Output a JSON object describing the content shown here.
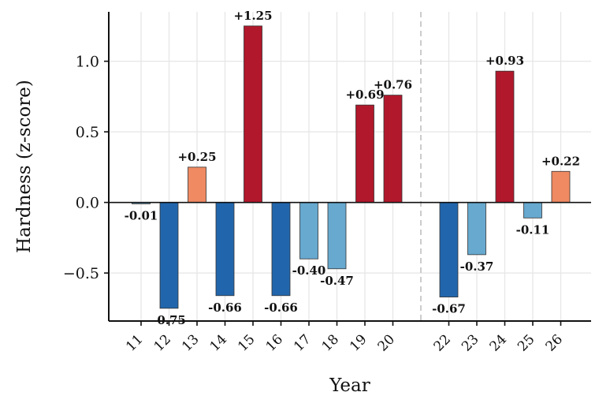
{
  "chart_data": {
    "type": "bar",
    "title": "",
    "xlabel": "Year",
    "ylabel": "Hardness (z-score)",
    "ylim": [
      -0.84,
      1.35
    ],
    "yticks": [
      -0.5,
      0.0,
      0.5,
      1.0
    ],
    "ytick_labels": [
      "−0.5",
      "0.0",
      "0.5",
      "1.0"
    ],
    "categories": [
      "11",
      "12",
      "13",
      "14",
      "15",
      "16",
      "17",
      "18",
      "19",
      "20",
      "22",
      "23",
      "24",
      "25",
      "26"
    ],
    "values": [
      -0.01,
      -0.75,
      0.25,
      -0.66,
      1.25,
      -0.66,
      -0.4,
      -0.47,
      0.69,
      0.76,
      -0.67,
      -0.37,
      0.93,
      -0.11,
      0.22
    ],
    "data_labels": [
      "-0.01",
      "-0.75",
      "+0.25",
      "-0.66",
      "+1.25",
      "-0.66",
      "-0.40",
      "-0.47",
      "+0.69",
      "+0.76",
      "-0.67",
      "-0.37",
      "+0.93",
      "-0.11",
      "+0.22"
    ],
    "colors": {
      "strong_positive": "#b2182b",
      "mild_positive": "#ef8a62",
      "mild_negative": "#67a9cf",
      "strong_negative": "#2166ac",
      "bar_edge": "#333333",
      "zero_line": "#111111",
      "divider": "#cccccc",
      "grid": "#e6e6e6"
    },
    "color_thresholds": {
      "strong": 0.5
    },
    "grid": true,
    "divider_between": [
      "20",
      "22"
    ],
    "zero_line": true
  }
}
